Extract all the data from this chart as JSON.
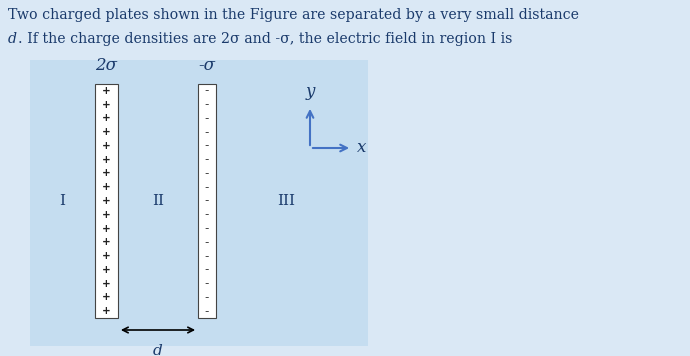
{
  "background_color": "#dae8f5",
  "diagram_box_color": "#c5ddf0",
  "text_color": "#1a3a6b",
  "axis_color": "#4472c4",
  "plate_border_color": "#444444",
  "plus_color": "#222222",
  "minus_color": "#444444",
  "title_line1": "Two charged plates shown in the Figure are separated by a very small distance",
  "title_line2_d": "d",
  "title_line2_rest": ". If the charge densities are 2σ and -σ, the electric field in region I is",
  "plate1_label": "2σ",
  "plate2_label": "-σ",
  "region_I": "I",
  "region_II": "II",
  "region_III": "III",
  "d_label": "d",
  "n_charges": 17,
  "font_size_title": 10.2,
  "font_size_label": 12,
  "font_size_region": 11,
  "font_size_charge": 7.5,
  "font_size_axis_label": 12
}
